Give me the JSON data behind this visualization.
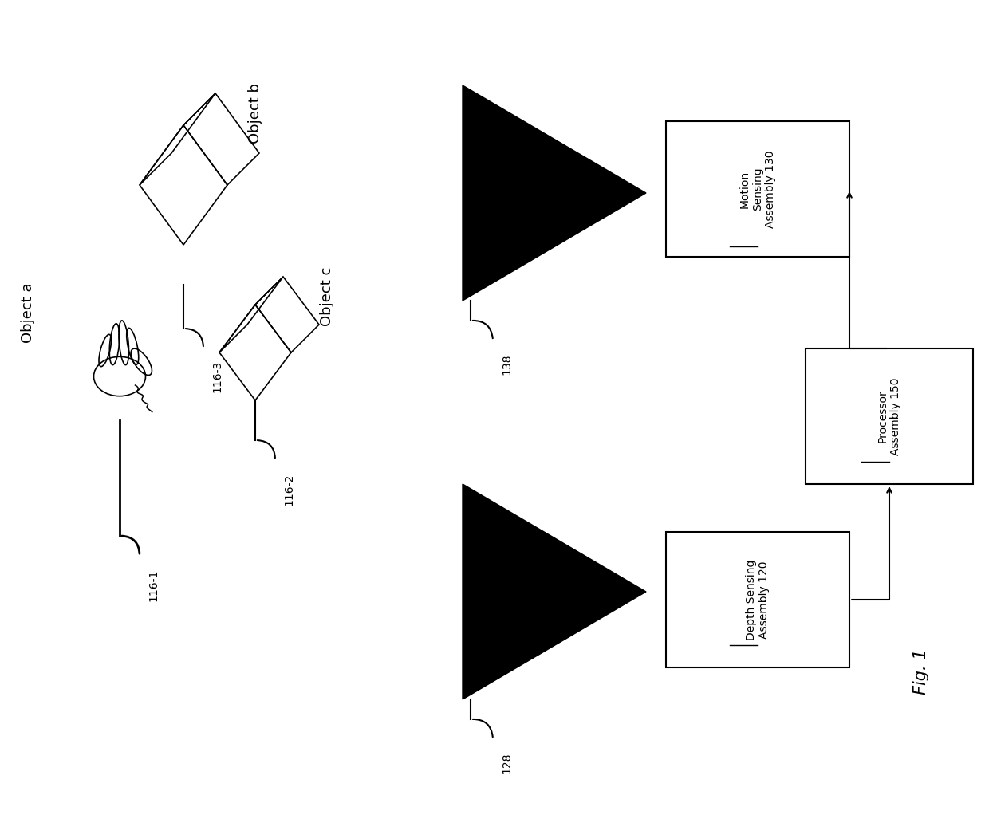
{
  "bg_color": "#ffffff",
  "fig_width": 12.4,
  "fig_height": 10.22,
  "fig_label": "Fig. 1",
  "object_a": "Object a",
  "object_b": "Object b",
  "object_c": "Object c",
  "ref_116_1": "116-1",
  "ref_116_2": "116-2",
  "ref_116_3": "116-3",
  "ref_128": "128",
  "ref_138": "138",
  "motion_line1": "Motion",
  "motion_line2": "Sensing",
  "motion_line3": "Assembly ",
  "motion_num": "130",
  "depth_line1": "Depth Sensing",
  "depth_line2": "Assembly ",
  "depth_num": "120",
  "proc_line1": "Processor",
  "proc_line2": "Assembly ",
  "proc_num": "150"
}
